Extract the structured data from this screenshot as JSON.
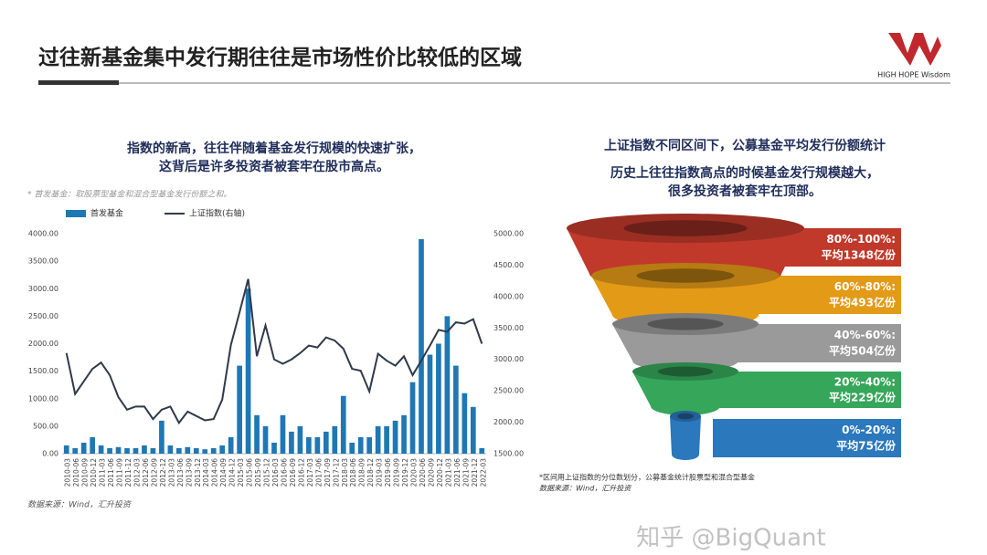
{
  "header": {
    "title": "过往新基金集中发行期往往是市场性价比较低的区域",
    "logo": "HIGH HOPE Wisdom"
  },
  "chart_data": {
    "type": "bar-line",
    "subtitle": [
      "指数的新高，往往伴随着基金发行规模的快速扩张，",
      "这背后是许多投资者被套牢在股市高点。"
    ],
    "note": "* 首发基金：取股票型基金和混合型基金发行份额之和。",
    "source": "数据来源：Wind，汇升投资",
    "categories": [
      "2010-03",
      "2010-06",
      "2010-09",
      "2010-12",
      "2011-03",
      "2011-06",
      "2011-09",
      "2011-12",
      "2012-03",
      "2012-06",
      "2012-09",
      "2012-12",
      "2013-03",
      "2013-06",
      "2013-09",
      "2013-12",
      "2014-03",
      "2014-06",
      "2014-09",
      "2014-12",
      "2015-03",
      "2015-06",
      "2015-09",
      "2015-12",
      "2016-03",
      "2016-06",
      "2016-09",
      "2016-12",
      "2017-03",
      "2017-06",
      "2017-09",
      "2017-12",
      "2018-03",
      "2018-06",
      "2018-09",
      "2018-12",
      "2019-03",
      "2019-06",
      "2019-09",
      "2019-12",
      "2020-03",
      "2020-06",
      "2020-09",
      "2020-12",
      "2021-03",
      "2021-06",
      "2021-09",
      "2021-12",
      "2022-03"
    ],
    "series": [
      {
        "name": "首发基金",
        "color": "#1f77b4",
        "values": [
          150,
          100,
          200,
          300,
          150,
          100,
          120,
          100,
          100,
          150,
          100,
          600,
          150,
          100,
          120,
          100,
          80,
          100,
          150,
          300,
          1600,
          3000,
          700,
          500,
          200,
          700,
          400,
          500,
          300,
          300,
          400,
          500,
          1050,
          200,
          300,
          300,
          500,
          500,
          600,
          700,
          1300,
          3900,
          1800,
          2000,
          2500,
          1600,
          1100,
          850,
          100
        ]
      },
      {
        "name": "上证指数(右轴)",
        "color": "#2f3a4a",
        "axis": "y2",
        "values": [
          3100,
          2450,
          2650,
          2850,
          2950,
          2750,
          2400,
          2200,
          2250,
          2250,
          2050,
          2200,
          2250,
          1990,
          2170,
          2100,
          2030,
          2050,
          2360,
          3230,
          3750,
          4280,
          3050,
          3540,
          3000,
          2930,
          3000,
          3100,
          3220,
          3190,
          3350,
          3300,
          3170,
          2850,
          2820,
          2490,
          3090,
          2980,
          2900,
          3050,
          2750,
          2980,
          3220,
          3470,
          3440,
          3590,
          3570,
          3640,
          3250
        ]
      }
    ],
    "ylim": [
      0,
      4000
    ],
    "yticks": [
      {
        "value": 0,
        "label": "0.00"
      },
      {
        "value": 500,
        "label": "500.00"
      },
      {
        "value": 1000,
        "label": "1000.00"
      },
      {
        "value": 1500,
        "label": "1500.00"
      },
      {
        "value": 2000,
        "label": "2000.00"
      },
      {
        "value": 2500,
        "label": "2500.00"
      },
      {
        "value": 3000,
        "label": "3000.00"
      },
      {
        "value": 3500,
        "label": "3500.00"
      },
      {
        "value": 4000,
        "label": "4000.00"
      }
    ],
    "y2lim": [
      1500,
      5000
    ],
    "y2ticks": [
      {
        "value": 1500,
        "label": "1500.00"
      },
      {
        "value": 2000,
        "label": "2000.00"
      },
      {
        "value": 2500,
        "label": "2500.00"
      },
      {
        "value": 3000,
        "label": "3000.00"
      },
      {
        "value": 3500,
        "label": "3500.00"
      },
      {
        "value": 4000,
        "label": "4000.00"
      },
      {
        "value": 4500,
        "label": "4500.00"
      },
      {
        "value": 5000,
        "label": "5000.00"
      }
    ]
  },
  "funnel": {
    "title": "上证指数不同区间下，公募基金平均发行份额统计",
    "subtitle": [
      "历史上往往指数高点的时候基金发行规模越大，",
      "很多投资者被套牢在顶部。"
    ],
    "levels": [
      {
        "range": "80%-100%:",
        "average": "平均1348亿份",
        "color": "#c0392b"
      },
      {
        "range": "60%-80%:",
        "average": "平均493亿份",
        "color": "#e39a16"
      },
      {
        "range": "40%-60%:",
        "average": "平均504亿份",
        "color": "#9a9a9a"
      },
      {
        "range": "20%-40%:",
        "average": "平均229亿份",
        "color": "#36a65a"
      },
      {
        "range": "0%-20%:",
        "average": "平均75亿份",
        "color": "#2b78bd"
      }
    ],
    "note": "*区间用上证指数的分位数划分，公募基金统计股票型和混合型基金",
    "source": "数据来源：Wind，汇升投资"
  },
  "watermark": "知乎 @BigQuant"
}
